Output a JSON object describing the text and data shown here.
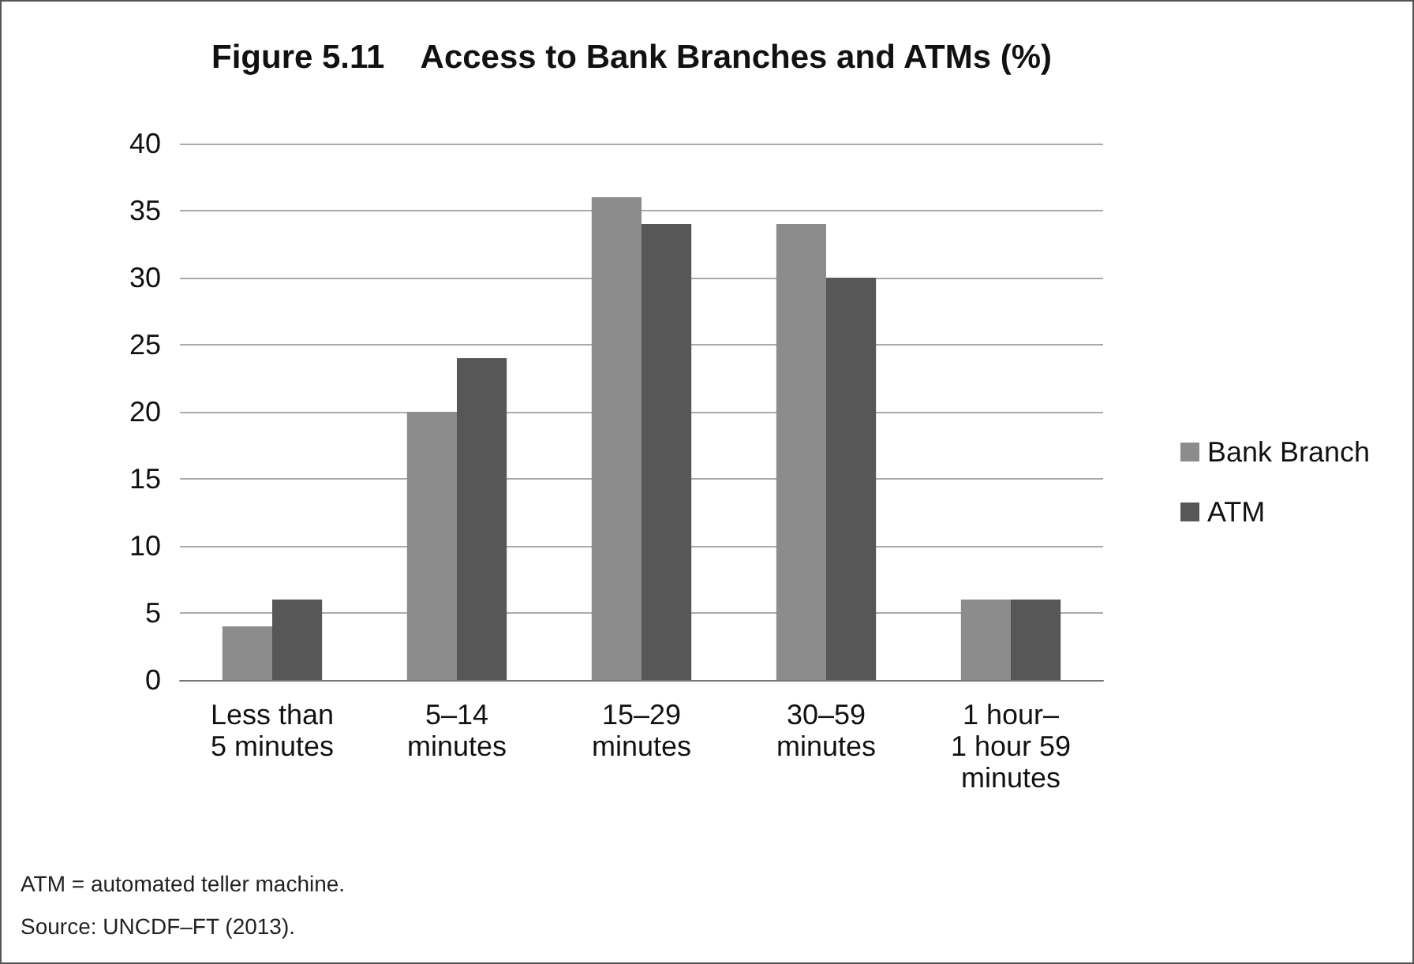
{
  "chart_data": {
    "type": "bar",
    "title": "Figure 5.11    Access to Bank Branches and ATMs (%)",
    "categories": [
      "Less than\n5 minutes",
      "5–14\nminutes",
      "15–29\nminutes",
      "30–59\nminutes",
      "1 hour–\n1 hour 59\nminutes"
    ],
    "series": [
      {
        "name": "Bank Branch",
        "color": "#8c8c8c",
        "values": [
          4,
          20,
          36,
          34,
          6
        ]
      },
      {
        "name": "ATM",
        "color": "#575757",
        "values": [
          6,
          24,
          34,
          30,
          6
        ]
      }
    ],
    "ylim": [
      0,
      40
    ],
    "yticks": [
      0,
      5,
      10,
      15,
      20,
      25,
      30,
      35,
      40
    ],
    "grid": "y",
    "legend": "right",
    "annotations": [
      "ATM = automated teller machine.",
      "Source: UNCDF–FT (2013)."
    ]
  }
}
